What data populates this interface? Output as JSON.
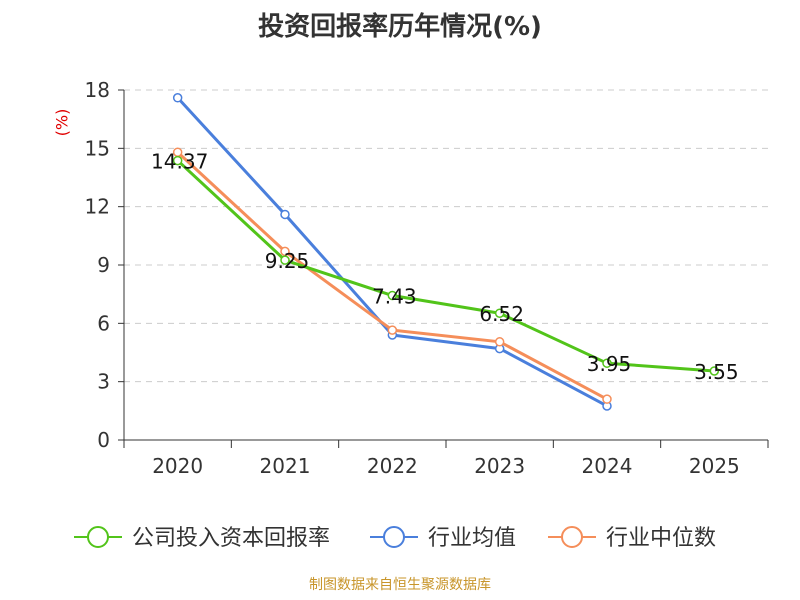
{
  "chart_data": {
    "type": "line",
    "title": "投资回报率历年情况(%)",
    "ylabel": "(%)",
    "xlabel": "",
    "categories": [
      "2020",
      "2021",
      "2022",
      "2023",
      "2024",
      "2025"
    ],
    "ylim": [
      0,
      18
    ],
    "yticks": [
      0,
      3,
      6,
      9,
      12,
      15,
      18
    ],
    "grid": true,
    "legend_position": "bottom",
    "series": [
      {
        "name": "公司投入资本回报率",
        "color": "#52c41a",
        "values": [
          14.37,
          9.25,
          7.43,
          6.52,
          3.95,
          3.55
        ],
        "labels": [
          "14.37",
          "9.25",
          "7.43",
          "6.52",
          "3.95",
          "3.55"
        ]
      },
      {
        "name": "行业均值",
        "color": "#4a7fdc",
        "values": [
          17.6,
          11.6,
          5.4,
          4.7,
          1.75,
          null
        ],
        "labels": null
      },
      {
        "name": "行业中位数",
        "color": "#f58e5a",
        "values": [
          14.8,
          9.7,
          5.65,
          5.05,
          2.1,
          null
        ],
        "labels": null
      }
    ]
  },
  "footer": "制图数据来自恒生聚源数据库"
}
